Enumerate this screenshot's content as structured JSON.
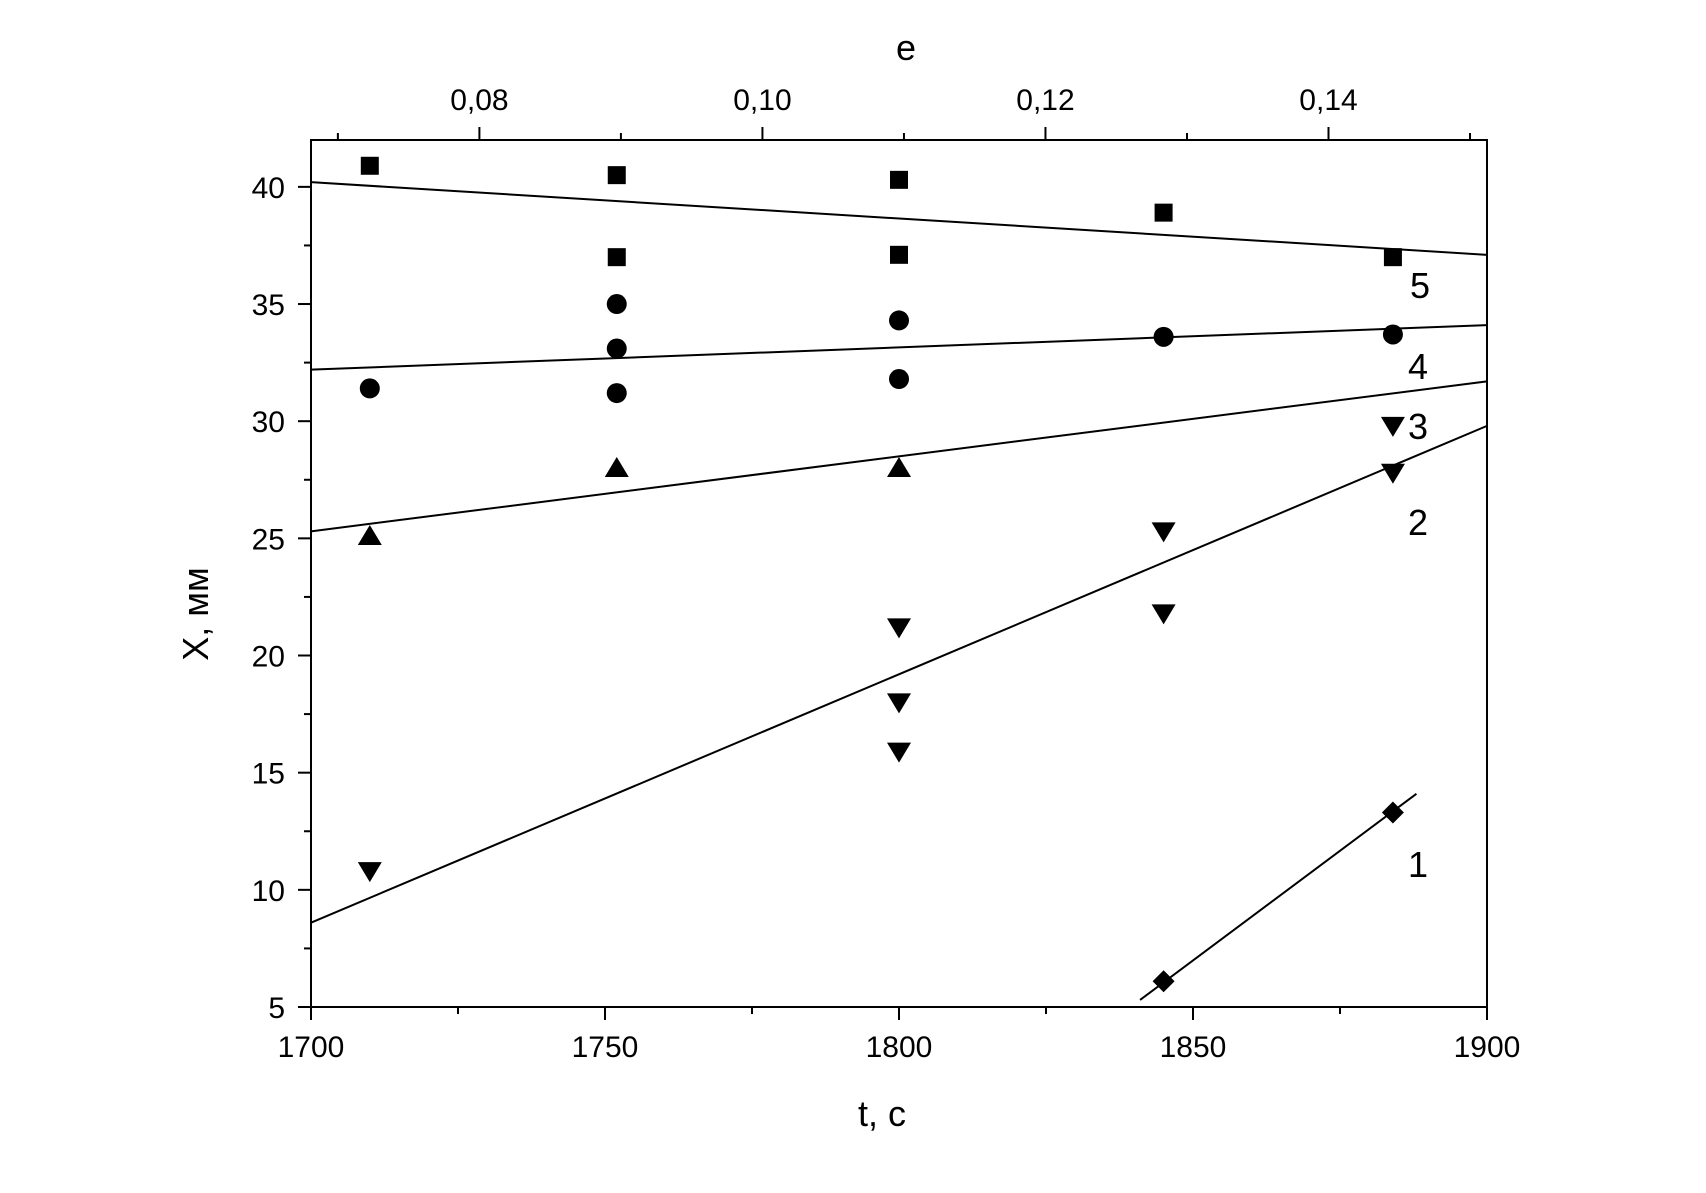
{
  "chart_data": {
    "type": "scatter",
    "title": "",
    "xlabel": "t, c",
    "ylabel": "X, мм",
    "x2label": "e",
    "xlim": [
      1700,
      1900
    ],
    "ylim": [
      5,
      42
    ],
    "x2lim": [
      0.0681,
      0.1512
    ],
    "xticks": [
      1700,
      1750,
      1800,
      1850,
      1900
    ],
    "xtick_labels": [
      "1700",
      "1750",
      "1800",
      "1850",
      "1900"
    ],
    "yticks": [
      5,
      10,
      15,
      20,
      25,
      30,
      35,
      40
    ],
    "ytick_labels": [
      "5",
      "10",
      "15",
      "20",
      "25",
      "30",
      "35",
      "40"
    ],
    "x2ticks": [
      0.08,
      0.1,
      0.12,
      0.14
    ],
    "x2tick_labels": [
      "0,08",
      "0,10",
      "0,12",
      "0,14"
    ],
    "grid": false,
    "legend": "none",
    "series": [
      {
        "label": "5",
        "marker": "square",
        "points": [
          [
            1710,
            40.9
          ],
          [
            1752,
            40.5
          ],
          [
            1752,
            37.0
          ],
          [
            1800,
            40.3
          ],
          [
            1800,
            37.1
          ],
          [
            1845,
            38.9
          ],
          [
            1884,
            37.0
          ]
        ],
        "fit": [
          [
            1700,
            40.2
          ],
          [
            1900,
            37.1
          ]
        ]
      },
      {
        "label": "4",
        "marker": "circle",
        "points": [
          [
            1710,
            31.4
          ],
          [
            1752,
            35.0
          ],
          [
            1752,
            33.1
          ],
          [
            1752,
            31.2
          ],
          [
            1800,
            34.3
          ],
          [
            1800,
            31.8
          ],
          [
            1845,
            33.6
          ],
          [
            1884,
            33.7
          ]
        ],
        "fit": [
          [
            1700,
            32.2
          ],
          [
            1900,
            34.1
          ]
        ]
      },
      {
        "label": "3",
        "marker": "triangle-up",
        "points": [
          [
            1710,
            25.1
          ],
          [
            1752,
            28.0
          ],
          [
            1800,
            28.0
          ]
        ],
        "fit": [
          [
            1700,
            25.3
          ],
          [
            1900,
            31.7
          ]
        ]
      },
      {
        "label": "2",
        "marker": "triangle-down",
        "points": [
          [
            1710,
            10.8
          ],
          [
            1800,
            21.2
          ],
          [
            1800,
            18.0
          ],
          [
            1800,
            15.9
          ],
          [
            1845,
            25.3
          ],
          [
            1845,
            21.8
          ],
          [
            1884,
            29.8
          ],
          [
            1884,
            27.8
          ]
        ],
        "fit": [
          [
            1700,
            8.6
          ],
          [
            1900,
            29.8
          ]
        ]
      },
      {
        "label": "1",
        "marker": "diamond",
        "points": [
          [
            1845,
            6.1
          ],
          [
            1884,
            13.3
          ]
        ],
        "fit": [
          [
            1841,
            5.3
          ],
          [
            1888,
            14.1
          ]
        ]
      }
    ]
  }
}
